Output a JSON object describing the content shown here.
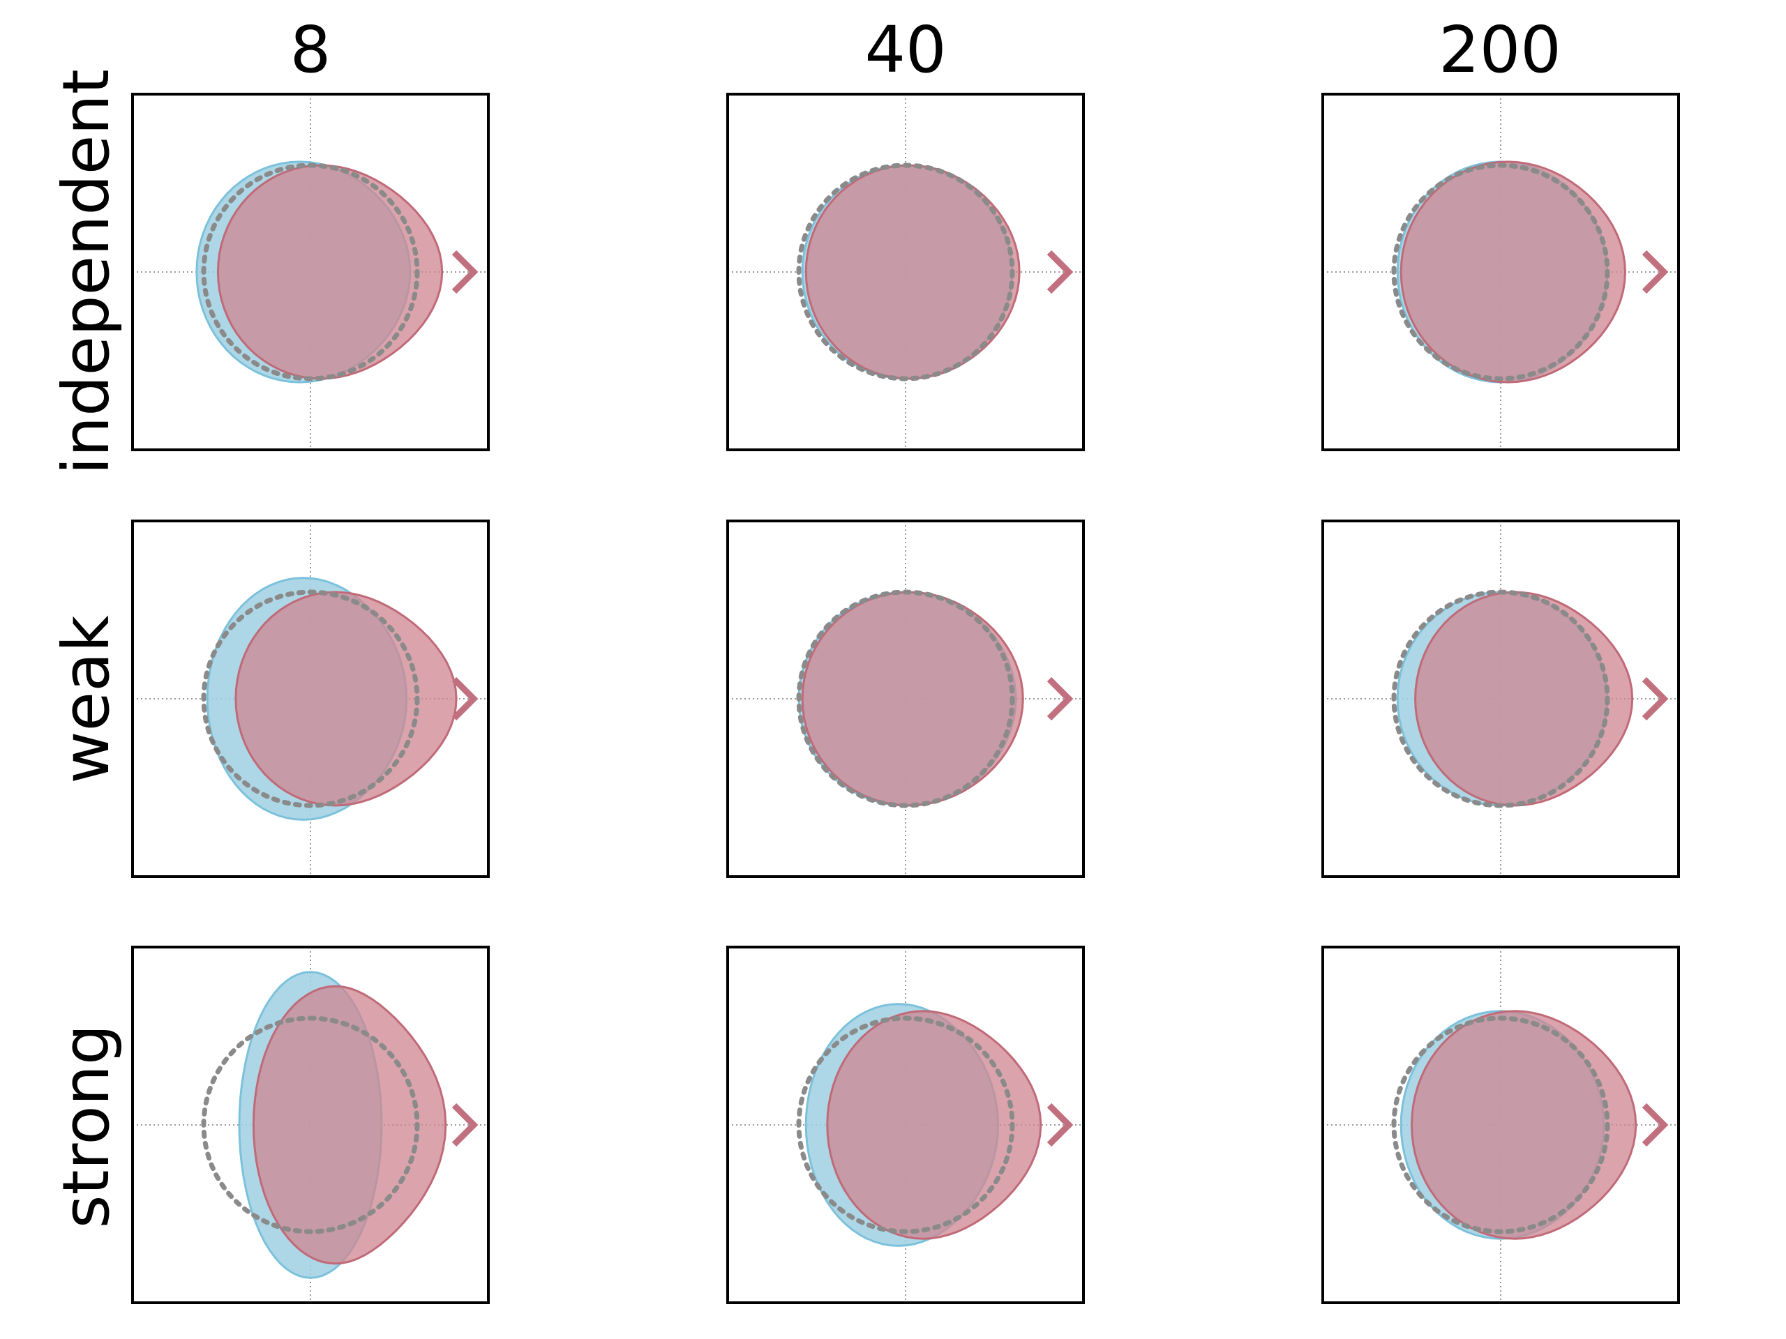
{
  "chart_data": {
    "type": "polar-shape-grid",
    "columns": [
      "8",
      "40",
      "200"
    ],
    "rows": [
      "independent",
      "weak",
      "strong"
    ],
    "colors": {
      "blue_shape": "#9fd0e2",
      "blue_stroke": "#7cc1dc",
      "red_shape": "#cf8590",
      "red_stroke": "#c06a78",
      "overlap": "#bb909b",
      "reference_circle": "#8a8a8a",
      "crosshair": "#999999",
      "arrow": "#c0707e",
      "frame": "#000000"
    },
    "panels": [
      {
        "row": "independent",
        "column": "8",
        "blue": {
          "cx": -0.03,
          "rx": 0.29,
          "ry": 0.31,
          "bulge": 0.02
        },
        "red": {
          "cx": 0.03,
          "rx": 0.29,
          "ry": 0.3,
          "bulge": 0.05
        }
      },
      {
        "row": "independent",
        "column": "40",
        "blue": {
          "cx": 0.0,
          "rx": 0.29,
          "ry": 0.3,
          "bulge": 0.01
        },
        "red": {
          "cx": 0.01,
          "rx": 0.29,
          "ry": 0.3,
          "bulge": 0.02
        }
      },
      {
        "row": "independent",
        "column": "200",
        "blue": {
          "cx": 0.0,
          "rx": 0.29,
          "ry": 0.31,
          "bulge": 0.01
        },
        "red": {
          "cx": 0.02,
          "rx": 0.3,
          "ry": 0.31,
          "bulge": 0.03
        }
      },
      {
        "row": "weak",
        "column": "8",
        "blue": {
          "cx": -0.02,
          "rx": 0.27,
          "ry": 0.34,
          "bulge": 0.02
        },
        "red": {
          "cx": 0.07,
          "rx": 0.28,
          "ry": 0.3,
          "bulge": 0.06
        }
      },
      {
        "row": "weak",
        "column": "40",
        "blue": {
          "cx": 0.0,
          "rx": 0.3,
          "ry": 0.3,
          "bulge": 0.01
        },
        "red": {
          "cx": 0.01,
          "rx": 0.3,
          "ry": 0.3,
          "bulge": 0.02
        }
      },
      {
        "row": "weak",
        "column": "200",
        "blue": {
          "cx": 0.0,
          "rx": 0.29,
          "ry": 0.3,
          "bulge": 0.01
        },
        "red": {
          "cx": 0.04,
          "rx": 0.28,
          "ry": 0.3,
          "bulge": 0.05
        }
      },
      {
        "row": "strong",
        "column": "8",
        "blue": {
          "cx": 0.0,
          "rx": 0.2,
          "ry": 0.43,
          "bulge": 0.0
        },
        "red": {
          "cx": 0.07,
          "rx": 0.23,
          "ry": 0.39,
          "bulge": 0.08
        }
      },
      {
        "row": "strong",
        "column": "40",
        "blue": {
          "cx": -0.02,
          "rx": 0.26,
          "ry": 0.34,
          "bulge": 0.02
        },
        "red": {
          "cx": 0.05,
          "rx": 0.27,
          "ry": 0.32,
          "bulge": 0.06
        }
      },
      {
        "row": "strong",
        "column": "200",
        "blue": {
          "cx": 0.0,
          "rx": 0.28,
          "ry": 0.32,
          "bulge": 0.01
        },
        "red": {
          "cx": 0.04,
          "rx": 0.29,
          "ry": 0.32,
          "bulge": 0.05
        }
      }
    ],
    "reference_circle_radius": 0.3,
    "grid": "crosshair-dotted",
    "axis_ticks": false
  }
}
